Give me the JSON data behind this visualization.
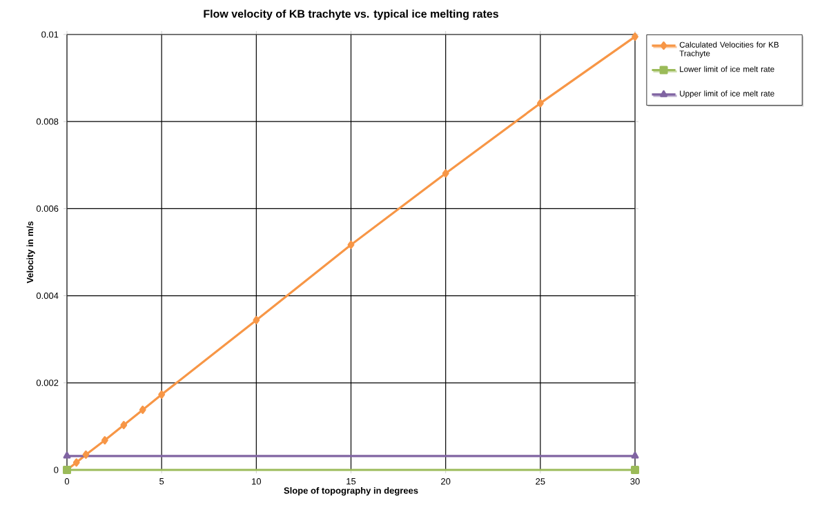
{
  "chart_data": {
    "type": "line",
    "title": "Flow velocity of KB trachyte vs. typical ice melting rates",
    "xlabel": "Slope of topography in degrees",
    "ylabel": "Velocity in m/s",
    "xlim": [
      0,
      30
    ],
    "xticks": [
      0,
      5,
      10,
      15,
      20,
      25,
      30
    ],
    "ylim": [
      0,
      0.01
    ],
    "yticks": [
      0,
      0.002,
      0.004,
      0.006,
      0.008,
      0.01
    ],
    "grid": true,
    "legend": "right",
    "series": [
      {
        "name": "Calculated Velocities for KB Trachyte",
        "color": "#f79646",
        "marker": "diamond",
        "x": [
          0,
          0.5,
          1,
          2,
          3,
          4,
          5,
          10,
          15,
          20,
          25,
          30
        ],
        "values": [
          0,
          0.00017,
          0.00035,
          0.00068,
          0.00103,
          0.00138,
          0.00173,
          0.00344,
          0.00517,
          0.00681,
          0.00842,
          0.00995
        ]
      },
      {
        "name": "Lower limit of ice melt rate",
        "color": "#9bbb59",
        "marker": "square",
        "x": [
          0,
          30
        ],
        "values": [
          0,
          0
        ]
      },
      {
        "name": "Upper limit of ice melt rate",
        "color": "#8064a2",
        "marker": "triangle",
        "x": [
          0,
          30
        ],
        "values": [
          0.00032,
          0.00032
        ]
      }
    ]
  }
}
